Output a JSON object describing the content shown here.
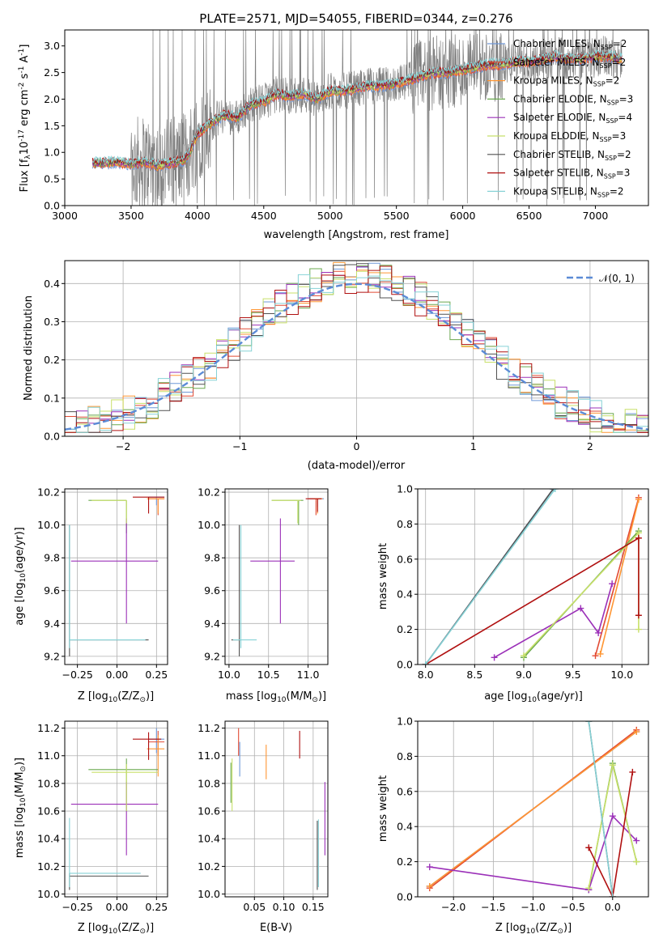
{
  "title": "PLATE=2571, MJD=54055, FIBERID=0344, z=0.276",
  "models": [
    {
      "label": "Chabrier MILES, N",
      "sub": "SSP",
      "tail": "=2",
      "color": "#6f98d8"
    },
    {
      "label": "Salpeter MILES, N",
      "sub": "SSP",
      "tail": "=2",
      "color": "#e24a33"
    },
    {
      "label": "Kroupa MILES, N",
      "sub": "SSP",
      "tail": "=2",
      "color": "#ff9633"
    },
    {
      "label": "Chabrier ELODIE, N",
      "sub": "SSP",
      "tail": "=3",
      "color": "#6aa84f"
    },
    {
      "label": "Salpeter ELODIE, N",
      "sub": "SSP",
      "tail": "=4",
      "color": "#9b30b8"
    },
    {
      "label": "Kroupa ELODIE, N",
      "sub": "SSP",
      "tail": "=3",
      "color": "#c8e06a"
    },
    {
      "label": "Chabrier STELIB, N",
      "sub": "SSP",
      "tail": "=2",
      "color": "#505050"
    },
    {
      "label": "Salpeter STELIB, N",
      "sub": "SSP",
      "tail": "=3",
      "color": "#b01010"
    },
    {
      "label": "Kroupa STELIB, N",
      "sub": "SSP",
      "tail": "=2",
      "color": "#86d2d6"
    }
  ],
  "chart_data": [
    {
      "id": "spectrum",
      "type": "line",
      "xlabel": "wavelength [Angstrom, rest frame]",
      "ylabel_parts": [
        "Flux [f",
        "λ",
        "10",
        "-17",
        " erg cm",
        "-2",
        " s",
        "-1",
        " A",
        "-1",
        "]"
      ],
      "xlim": [
        3000,
        7400
      ],
      "ylim": [
        0,
        3.3
      ],
      "xticks": [
        3000,
        3500,
        4000,
        4500,
        5000,
        5500,
        6000,
        6500,
        7000
      ],
      "yticks": [
        0.0,
        0.5,
        1.0,
        1.5,
        2.0,
        2.5,
        3.0
      ],
      "ytick_labels": [
        "0.0",
        "0.5",
        "1.0",
        "1.5",
        "2.0",
        "2.5",
        "3.0"
      ],
      "data_color": "#808080",
      "model_continuum": {
        "x": [
          3210,
          3300,
          3400,
          3500,
          3600,
          3700,
          3800,
          3900,
          3950,
          4000,
          4100,
          4200,
          4300,
          4400,
          4500,
          4600,
          4700,
          4800,
          4900,
          5000,
          5100,
          5200,
          5300,
          5400,
          5500,
          5600,
          5700,
          5800,
          5900,
          6000,
          6100,
          6200,
          6300,
          6400,
          6500,
          6600,
          6700,
          6800,
          6900,
          7000,
          7100,
          7200
        ],
        "y": [
          0.8,
          0.8,
          0.82,
          0.78,
          0.82,
          0.75,
          0.8,
          0.85,
          1.05,
          1.35,
          1.55,
          1.7,
          1.65,
          1.9,
          1.95,
          2.1,
          2.05,
          2.1,
          2.0,
          2.15,
          2.15,
          2.2,
          2.25,
          2.25,
          2.3,
          2.35,
          2.45,
          2.5,
          2.5,
          2.55,
          2.6,
          2.65,
          2.65,
          2.7,
          2.7,
          2.75,
          2.8,
          2.75,
          2.75,
          2.8,
          2.8,
          2.75
        ]
      }
    },
    {
      "id": "residuals",
      "type": "step",
      "xlabel": "(data-model)/error",
      "ylabel": "Normed distribution",
      "xlim": [
        -2.5,
        2.5
      ],
      "ylim": [
        0,
        0.46
      ],
      "xticks": [
        -2,
        -1,
        0,
        1,
        2
      ],
      "xtick_labels": [
        "−2",
        "−1",
        "0",
        "1",
        "2"
      ],
      "yticks": [
        0.0,
        0.1,
        0.2,
        0.3,
        0.4
      ],
      "ytick_labels": [
        "0.0",
        "0.1",
        "0.2",
        "0.3",
        "0.4"
      ],
      "gaussian_label": "𝒩(0, 1)",
      "gaussian_color": "#5b8bd6",
      "bin_width": 0.1
    },
    {
      "id": "age-vs-Z",
      "type": "errorbar",
      "xlabel_parts": [
        "Z [log",
        "10",
        "(Z/Z",
        "⊙",
        ")]"
      ],
      "ylabel_parts": [
        "age  [log",
        "10",
        "(age/yr)]"
      ],
      "xlim": [
        -0.33,
        0.32
      ],
      "ylim": [
        9.15,
        10.22
      ],
      "xticks": [
        -0.25,
        0.0,
        0.25
      ],
      "xtick_labels": [
        "−0.25",
        "0.00",
        "0.25"
      ],
      "yticks": [
        9.2,
        9.4,
        9.6,
        9.8,
        10.0,
        10.2
      ],
      "ytick_labels": [
        "9.2",
        "9.4",
        "9.6",
        "9.8",
        "10.0",
        "10.2"
      ],
      "points": [
        {
          "m": 0,
          "x": 0.25,
          "xerr": [
            0.05,
            0.05
          ],
          "y": 10.17,
          "yerr": [
            0.05,
            0.0
          ]
        },
        {
          "m": 1,
          "x": 0.26,
          "xerr": [
            0.06,
            0.04
          ],
          "y": 10.16,
          "yerr": [
            0.1,
            0.0
          ]
        },
        {
          "m": 2,
          "x": 0.26,
          "xerr": [
            0.07,
            0.04
          ],
          "y": 10.16,
          "yerr": [
            0.09,
            0.0
          ]
        },
        {
          "m": 3,
          "x": 0.06,
          "xerr": [
            0.24,
            0.0
          ],
          "y": 10.15,
          "yerr": [
            0.2,
            0.0
          ]
        },
        {
          "m": 4,
          "x": 0.06,
          "xerr": [
            0.35,
            0.2
          ],
          "y": 9.78,
          "yerr": [
            0.38,
            0.26
          ]
        },
        {
          "m": 5,
          "x": 0.06,
          "xerr": [
            0.22,
            0.0
          ],
          "y": 10.15,
          "yerr": [
            0.14,
            0.0
          ]
        },
        {
          "m": 6,
          "x": -0.3,
          "xerr": [
            0.0,
            0.5
          ],
          "y": 9.3,
          "yerr": [
            0.1,
            0.7
          ]
        },
        {
          "m": 7,
          "x": 0.2,
          "xerr": [
            0.1,
            0.1
          ],
          "y": 10.17,
          "yerr": [
            0.1,
            0.0
          ]
        },
        {
          "m": 8,
          "x": -0.3,
          "xerr": [
            0.0,
            0.48
          ],
          "y": 9.3,
          "yerr": [
            0.05,
            0.7
          ]
        }
      ]
    },
    {
      "id": "age-vs-mass",
      "type": "errorbar",
      "xlabel_parts": [
        "mass [log",
        "10",
        "(M/M",
        "⊙",
        ")]"
      ],
      "ylabel_parts": [],
      "xlim": [
        9.95,
        11.25
      ],
      "ylim": [
        9.15,
        10.22
      ],
      "xticks": [
        10.0,
        10.5,
        11.0
      ],
      "xtick_labels": [
        "10.0",
        "10.5",
        "11.0"
      ],
      "yticks": [
        9.2,
        9.4,
        9.6,
        9.8,
        10.0,
        10.2
      ],
      "ytick_labels": [
        "9.2",
        "9.4",
        "9.6",
        "9.8",
        "10.0",
        "10.2"
      ],
      "points": [
        {
          "m": 0,
          "x": 11.12,
          "xerr": [
            0.1,
            0.08
          ],
          "y": 10.16,
          "yerr": [
            0.05,
            0.0
          ]
        },
        {
          "m": 1,
          "x": 11.1,
          "xerr": [
            0.1,
            0.08
          ],
          "y": 10.16,
          "yerr": [
            0.1,
            0.0
          ]
        },
        {
          "m": 2,
          "x": 11.12,
          "xerr": [
            0.06,
            0.06
          ],
          "y": 10.16,
          "yerr": [
            0.09,
            0.0
          ]
        },
        {
          "m": 3,
          "x": 10.88,
          "xerr": [
            0.34,
            0.06
          ],
          "y": 10.15,
          "yerr": [
            0.15,
            0.0
          ]
        },
        {
          "m": 4,
          "x": 10.65,
          "xerr": [
            0.38,
            0.18
          ],
          "y": 9.78,
          "yerr": [
            0.38,
            0.26
          ]
        },
        {
          "m": 5,
          "x": 10.87,
          "xerr": [
            0.33,
            0.04
          ],
          "y": 10.15,
          "yerr": [
            0.14,
            0.0
          ]
        },
        {
          "m": 6,
          "x": 10.13,
          "xerr": [
            0.1,
            0.02
          ],
          "y": 9.3,
          "yerr": [
            0.1,
            0.7
          ]
        },
        {
          "m": 7,
          "x": 11.12,
          "xerr": [
            0.15,
            0.05
          ],
          "y": 10.16,
          "yerr": [
            0.08,
            0.0
          ]
        },
        {
          "m": 8,
          "x": 10.15,
          "xerr": [
            0.1,
            0.2
          ],
          "y": 9.3,
          "yerr": [
            0.05,
            0.7
          ]
        }
      ]
    },
    {
      "id": "mass-weight-vs-age",
      "type": "line",
      "xlabel_parts": [
        "age  [log",
        "10",
        "(age/yr)]"
      ],
      "ylabel": "mass weight",
      "xlim": [
        7.92,
        10.27
      ],
      "ylim": [
        0,
        1
      ],
      "xticks": [
        8.0,
        8.5,
        9.0,
        9.5,
        10.0
      ],
      "xtick_labels": [
        "8.0",
        "8.5",
        "9.0",
        "9.5",
        "10.0"
      ],
      "yticks": [
        0.0,
        0.2,
        0.4,
        0.6,
        0.8,
        1.0
      ],
      "ytick_labels": [
        "0.0",
        "0.2",
        "0.4",
        "0.6",
        "0.8",
        "1.0"
      ],
      "series": [
        {
          "m": 0,
          "x": [
            8.0,
            9.3
          ],
          "y": [
            0.0,
            1.0
          ]
        },
        {
          "m": 1,
          "x": [
            9.73,
            10.17
          ],
          "y": [
            0.05,
            0.95
          ]
        },
        {
          "m": 2,
          "x": [
            9.78,
            10.17
          ],
          "y": [
            0.06,
            0.94
          ]
        },
        {
          "m": 3,
          "x": [
            9.0,
            10.17
          ],
          "y": [
            0.04,
            0.76
          ]
        },
        {
          "m": 4,
          "x": [
            8.7,
            9.58,
            9.76,
            9.9
          ],
          "y": [
            0.04,
            0.32,
            0.18,
            0.46
          ]
        },
        {
          "m": 5,
          "x": [
            9.0,
            10.17,
            10.17
          ],
          "y": [
            0.05,
            0.75,
            0.2
          ]
        },
        {
          "m": 6,
          "x": [
            8.0,
            9.3
          ],
          "y": [
            0.0,
            1.0
          ]
        },
        {
          "m": 7,
          "x": [
            8.0,
            10.17,
            10.17
          ],
          "y": [
            0.0,
            0.72,
            0.28
          ]
        },
        {
          "m": 8,
          "x": [
            8.0,
            9.32
          ],
          "y": [
            0.0,
            1.0
          ]
        }
      ]
    },
    {
      "id": "mass-vs-Z",
      "type": "errorbar",
      "xlabel_parts": [
        "Z [log",
        "10",
        "(Z/Z",
        "⊙",
        ")]"
      ],
      "ylabel_parts": [
        "mass [log",
        "10",
        "(M/M",
        "⊙",
        ")]"
      ],
      "xlim": [
        -0.33,
        0.32
      ],
      "ylim": [
        9.98,
        11.25
      ],
      "xticks": [
        -0.25,
        0.0,
        0.25
      ],
      "xtick_labels": [
        "−0.25",
        "0.00",
        "0.25"
      ],
      "yticks": [
        10.0,
        10.2,
        10.4,
        10.6,
        10.8,
        11.0,
        11.2
      ],
      "ytick_labels": [
        "10.0",
        "10.2",
        "10.4",
        "10.6",
        "10.8",
        "11.0",
        "11.2"
      ],
      "points": [
        {
          "m": 0,
          "x": 0.25,
          "xerr": [
            0.05,
            0.05
          ],
          "y": 11.12,
          "yerr": [
            0.1,
            0.08
          ]
        },
        {
          "m": 1,
          "x": 0.26,
          "xerr": [
            0.06,
            0.04
          ],
          "y": 11.1,
          "yerr": [
            0.1,
            0.08
          ]
        },
        {
          "m": 2,
          "x": 0.26,
          "xerr": [
            0.07,
            0.04
          ],
          "y": 11.05,
          "yerr": [
            0.2,
            0.1
          ]
        },
        {
          "m": 3,
          "x": 0.06,
          "xerr": [
            0.24,
            0.2
          ],
          "y": 10.9,
          "yerr": [
            0.3,
            0.08
          ]
        },
        {
          "m": 4,
          "x": 0.06,
          "xerr": [
            0.35,
            0.2
          ],
          "y": 10.65,
          "yerr": [
            0.37,
            0.16
          ]
        },
        {
          "m": 5,
          "x": 0.06,
          "xerr": [
            0.22,
            0.2
          ],
          "y": 10.88,
          "yerr": [
            0.28,
            0.06
          ]
        },
        {
          "m": 6,
          "x": -0.3,
          "xerr": [
            0.0,
            0.5
          ],
          "y": 10.13,
          "yerr": [
            0.1,
            0.02
          ]
        },
        {
          "m": 7,
          "x": 0.2,
          "xerr": [
            0.1,
            0.08
          ],
          "y": 11.12,
          "yerr": [
            0.15,
            0.05
          ]
        },
        {
          "m": 8,
          "x": -0.3,
          "xerr": [
            0.0,
            0.45
          ],
          "y": 10.15,
          "yerr": [
            0.1,
            0.4
          ]
        }
      ]
    },
    {
      "id": "mass-vs-ebv",
      "type": "errorbar",
      "xlabel": "E(B-V)",
      "ylabel_parts": [],
      "xlim": [
        0.0,
        0.175
      ],
      "ylim": [
        9.98,
        11.25
      ],
      "xticks": [
        0.05,
        0.1,
        0.15
      ],
      "xtick_labels": [
        "0.05",
        "0.10",
        "0.15"
      ],
      "yticks": [
        10.0,
        10.2,
        10.4,
        10.6,
        10.8,
        11.0,
        11.2
      ],
      "ytick_labels": [
        "10.0",
        "10.2",
        "10.4",
        "10.6",
        "10.8",
        "11.0",
        "11.2"
      ],
      "points": [
        {
          "m": 0,
          "x": 0.025,
          "xerr": [
            0,
            0
          ],
          "y": 11.0,
          "yerr": [
            0.15,
            0.1
          ]
        },
        {
          "m": 1,
          "x": 0.023,
          "xerr": [
            0,
            0
          ],
          "y": 11.1,
          "yerr": [
            0.1,
            0.1
          ]
        },
        {
          "m": 2,
          "x": 0.07,
          "xerr": [
            0,
            0
          ],
          "y": 10.95,
          "yerr": [
            0.12,
            0.13
          ]
        },
        {
          "m": 3,
          "x": 0.01,
          "xerr": [
            0,
            0
          ],
          "y": 10.8,
          "yerr": [
            0.14,
            0.15
          ]
        },
        {
          "m": 4,
          "x": 0.17,
          "xerr": [
            0,
            0
          ],
          "y": 10.55,
          "yerr": [
            0.27,
            0.26
          ]
        },
        {
          "m": 5,
          "x": 0.012,
          "xerr": [
            0,
            0
          ],
          "y": 10.78,
          "yerr": [
            0.18,
            0.2
          ]
        },
        {
          "m": 6,
          "x": 0.157,
          "xerr": [
            0,
            0
          ],
          "y": 10.25,
          "yerr": [
            0.22,
            0.28
          ]
        },
        {
          "m": 7,
          "x": 0.127,
          "xerr": [
            0,
            0
          ],
          "y": 11.08,
          "yerr": [
            0.1,
            0.1
          ]
        },
        {
          "m": 8,
          "x": 0.159,
          "xerr": [
            0,
            0
          ],
          "y": 10.3,
          "yerr": [
            0.25,
            0.24
          ]
        }
      ]
    },
    {
      "id": "mass-weight-vs-Z",
      "type": "line",
      "xlabel_parts": [
        "Z [log",
        "10",
        "(Z/Z",
        "⊙",
        ")]"
      ],
      "ylabel": "mass weight",
      "xlim": [
        -2.45,
        0.45
      ],
      "ylim": [
        0,
        1
      ],
      "xticks": [
        -2.0,
        -1.5,
        -1.0,
        -0.5,
        0.0
      ],
      "xtick_labels": [
        "−2.0",
        "−1.5",
        "−1.0",
        "−0.5",
        "0.0"
      ],
      "yticks": [
        0.0,
        0.2,
        0.4,
        0.6,
        0.8,
        1.0
      ],
      "ytick_labels": [
        "0.0",
        "0.2",
        "0.4",
        "0.6",
        "0.8",
        "1.0"
      ],
      "series": [
        {
          "m": 0,
          "x": [
            -2.3,
            0.3
          ],
          "y": [
            0.06,
            0.94
          ]
        },
        {
          "m": 1,
          "x": [
            -2.3,
            0.3
          ],
          "y": [
            0.05,
            0.95
          ]
        },
        {
          "m": 2,
          "x": [
            -2.3,
            0.3
          ],
          "y": [
            0.06,
            0.94
          ]
        },
        {
          "m": 3,
          "x": [
            -0.3,
            0.0,
            0.3
          ],
          "y": [
            0.04,
            0.76,
            0.2
          ]
        },
        {
          "m": 4,
          "x": [
            -2.3,
            -0.3,
            0.0,
            0.3
          ],
          "y": [
            0.17,
            0.04,
            0.46,
            0.32
          ]
        },
        {
          "m": 5,
          "x": [
            -0.3,
            0.0,
            0.3
          ],
          "y": [
            0.05,
            0.75,
            0.2
          ]
        },
        {
          "m": 6,
          "x": [
            -0.3,
            0.0
          ],
          "y": [
            1.0,
            0.0
          ]
        },
        {
          "m": 7,
          "x": [
            -0.3,
            0.0,
            0.25
          ],
          "y": [
            0.28,
            0.0,
            0.71
          ]
        },
        {
          "m": 8,
          "x": [
            -0.3,
            0.0
          ],
          "y": [
            1.0,
            0.0
          ]
        }
      ]
    }
  ]
}
